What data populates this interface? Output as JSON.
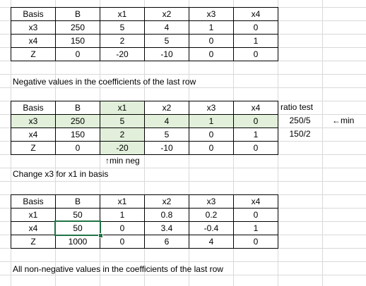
{
  "tables": [
    {
      "header": [
        "Basis",
        "B",
        "x1",
        "x2",
        "x3",
        "x4"
      ],
      "rows": [
        [
          "x3",
          250,
          5,
          4,
          1,
          0
        ],
        [
          "x4",
          150,
          2,
          5,
          0,
          1
        ],
        [
          "Z",
          0,
          -20,
          -10,
          0,
          0
        ]
      ]
    },
    {
      "header": [
        "Basis",
        "B",
        "x1",
        "x2",
        "x3",
        "x4"
      ],
      "rows": [
        [
          "x3",
          250,
          5,
          4,
          1,
          0
        ],
        [
          "x4",
          150,
          2,
          5,
          0,
          1
        ],
        [
          "Z",
          0,
          -20,
          -10,
          0,
          0
        ]
      ]
    },
    {
      "header": [
        "Basis",
        "B",
        "x1",
        "x2",
        "x3",
        "x4"
      ],
      "rows": [
        [
          "x1",
          50,
          1,
          0.8,
          0.2,
          0
        ],
        [
          "x4",
          50,
          0,
          3.4,
          -0.4,
          1
        ],
        [
          "Z",
          1000,
          0,
          6,
          4,
          0
        ]
      ]
    }
  ],
  "notes": [
    "Negative values in the coefficients of the last row",
    "Change x3 for x1 in basis",
    "All non-negative values in the coefficients of the last row"
  ],
  "ratio_test": {
    "header": "ratio test",
    "values": [
      "250/5",
      "150/2"
    ]
  },
  "annotations": {
    "min_row": "←min",
    "min_col": "↑min neg"
  }
}
